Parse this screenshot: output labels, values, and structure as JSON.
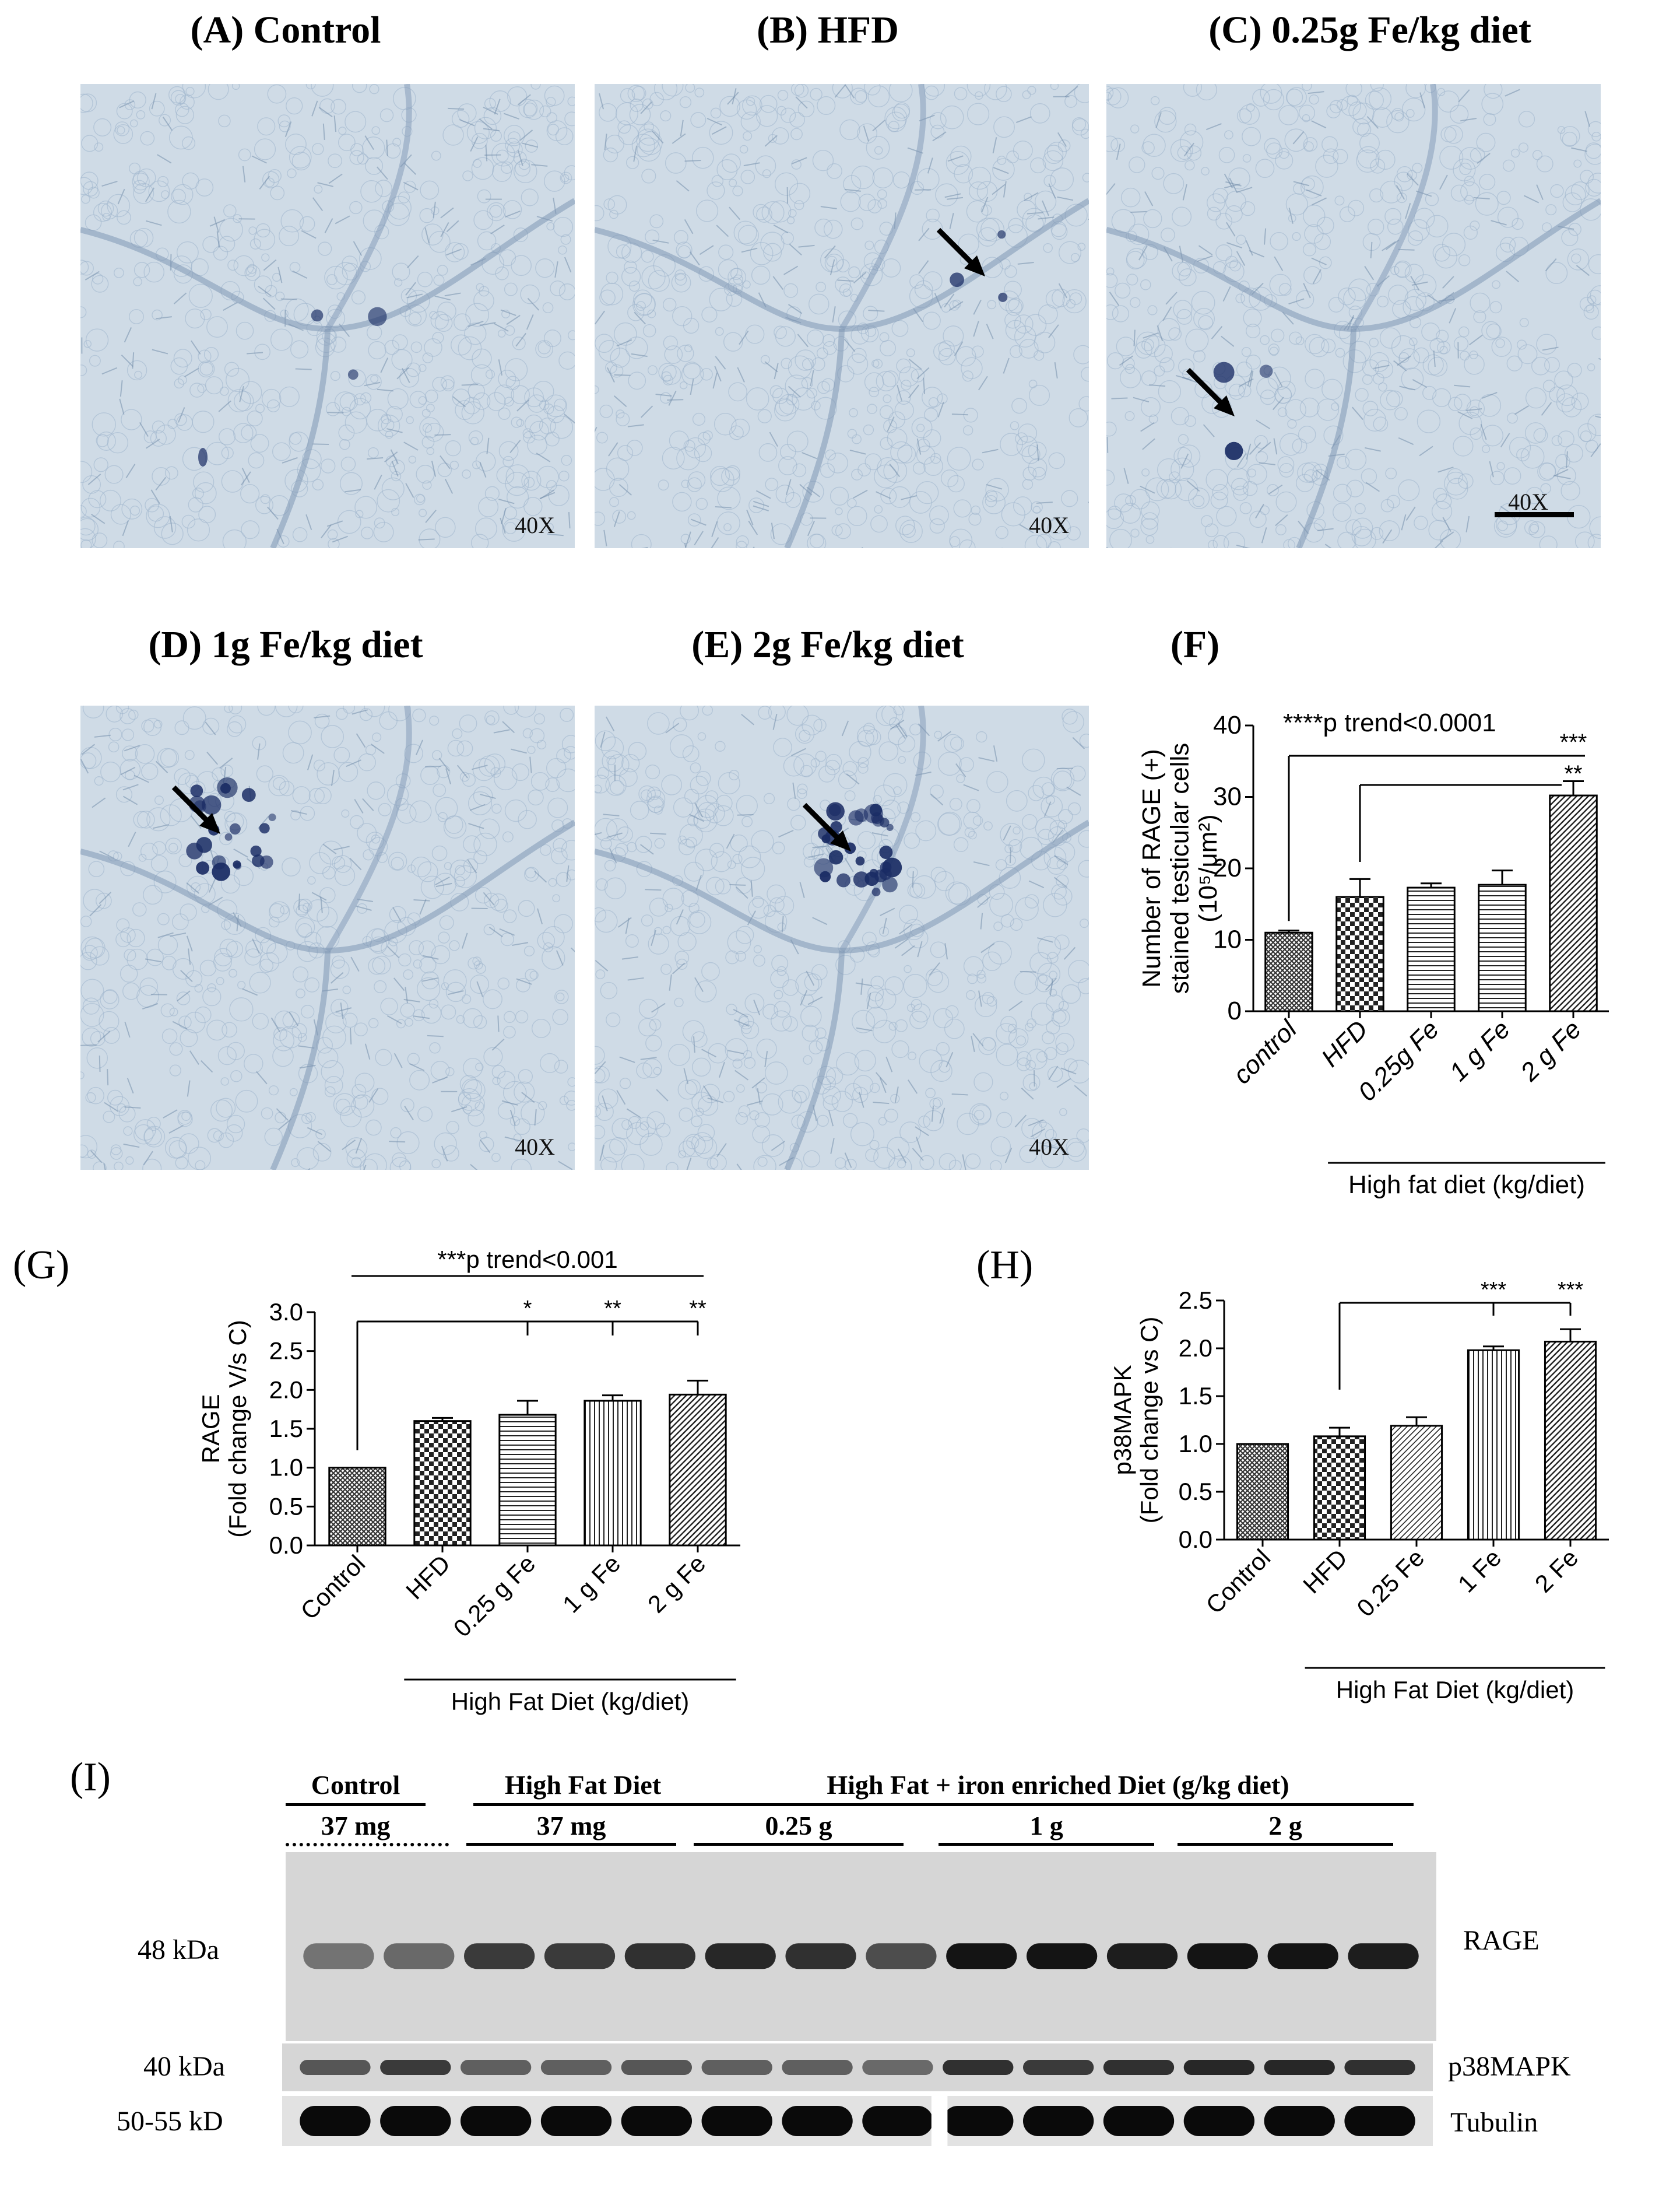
{
  "micrographs": [
    {
      "id": "A",
      "title": "(A) Control",
      "mag": "40X",
      "arrow": false,
      "stain": 1
    },
    {
      "id": "B",
      "title": "(B) HFD",
      "mag": "40X",
      "arrow": true,
      "stain": 2
    },
    {
      "id": "C",
      "title": "(C) 0.25g Fe/kg diet",
      "mag": "40X",
      "arrow": true,
      "stain": 2
    },
    {
      "id": "D",
      "title": "(D) 1g Fe/kg diet",
      "mag": "40X",
      "arrow": true,
      "stain": 3
    },
    {
      "id": "E",
      "title": "(E) 2g Fe/kg diet",
      "mag": "40X",
      "arrow": true,
      "stain": 4
    }
  ],
  "colors": {
    "tissue_bg": "#c9d6e2",
    "stain": "#1a2c64",
    "bar_fill": "#8a8a8a"
  },
  "chart_data": [
    {
      "panel": "(F)",
      "type": "bar",
      "categories": [
        "control",
        "HFD",
        "0.25g Fe",
        "1 g Fe",
        "2 g Fe"
      ],
      "values": [
        11,
        16,
        17.3,
        17.7,
        30.2
      ],
      "errors": [
        0.3,
        2.5,
        0.6,
        2.0,
        2.0
      ],
      "patterns": [
        "cross",
        "checker",
        "hlines",
        "hlines",
        "diag"
      ],
      "ylabel": "Number of RAGE (+) stained testicular cells (10⁵/μm²)",
      "ytick_labels": [
        "0",
        "10",
        "20",
        "30",
        "40"
      ],
      "ylim": [
        0,
        40
      ],
      "xgroup_label": "High fat diet (kg/diet)",
      "annotations": [
        {
          "text": "****p trend<0.0001",
          "from": 0,
          "to": 4,
          "level": 1
        },
        {
          "text": "***",
          "from": 0,
          "to": 4,
          "level": 1
        },
        {
          "text": "**",
          "from": 1,
          "to": 4,
          "level": 2
        }
      ]
    },
    {
      "panel": "(G)",
      "type": "bar",
      "categories": [
        "Control",
        "HFD",
        "0.25 g Fe",
        "1 g Fe",
        "2 g Fe"
      ],
      "values": [
        1.0,
        1.6,
        1.68,
        1.86,
        1.94
      ],
      "errors": [
        0.0,
        0.04,
        0.18,
        0.07,
        0.18
      ],
      "patterns": [
        "cross",
        "checker",
        "hlines",
        "vlines",
        "diag"
      ],
      "ylabel": "RAGE (Fold change V/s C)",
      "ytick_labels": [
        "0.0",
        "0.5",
        "1.0",
        "1.5",
        "2.0",
        "2.5",
        "3.0"
      ],
      "ylim": [
        0,
        3.0
      ],
      "xgroup_label": "High Fat Diet (kg/diet)",
      "annotations": [
        {
          "text": "***p trend<0.001",
          "from": 0,
          "to": 4,
          "level": 2
        },
        {
          "text": "*",
          "from": 0,
          "to": 2,
          "level": 1
        },
        {
          "text": "**",
          "from": 0,
          "to": 3,
          "level": 1
        },
        {
          "text": "**",
          "from": 0,
          "to": 4,
          "level": 1
        }
      ]
    },
    {
      "panel": "(H)",
      "type": "bar",
      "categories": [
        "Control",
        "HFD",
        "0.25 Fe",
        "1 Fe",
        "2 Fe"
      ],
      "values": [
        1.0,
        1.08,
        1.19,
        1.98,
        2.07
      ],
      "errors": [
        0.0,
        0.09,
        0.09,
        0.04,
        0.13
      ],
      "patterns": [
        "cross",
        "checker",
        "diag2",
        "vlines",
        "diag"
      ],
      "ylabel": "p38MAPK (Fold change vs C)",
      "ytick_labels": [
        "0.0",
        "0.5",
        "1.0",
        "1.5",
        "2.0",
        "2.5"
      ],
      "ylim": [
        0,
        2.5
      ],
      "xgroup_label": "High Fat Diet (kg/diet)",
      "annotations": [
        {
          "text": "***",
          "from": 1,
          "to": 3,
          "level": 1
        },
        {
          "text": "***",
          "from": 1,
          "to": 4,
          "level": 1
        }
      ]
    }
  ],
  "western": {
    "panel": "(I)",
    "groups": [
      {
        "label": "Control",
        "dose": "37 mg",
        "lanes": 2,
        "dotted": true
      },
      {
        "label": "High Fat Diet",
        "dose": "37 mg",
        "lanes": 3,
        "dotted": false
      },
      {
        "label": "",
        "dose": "0.25 g",
        "lanes": 3,
        "dotted": false
      },
      {
        "label": "",
        "dose": "1 g",
        "lanes": 3,
        "dotted": false
      },
      {
        "label": "",
        "dose": "2 g",
        "lanes": 3,
        "dotted": false
      }
    ],
    "span_label": "High Fat + iron enriched Diet (g/kg diet)",
    "blots": [
      {
        "kda": "48 kDa",
        "protein": "RAGE",
        "intensity": [
          0.45,
          0.5,
          0.75,
          0.75,
          0.8,
          0.85,
          0.8,
          0.65,
          0.95,
          0.95,
          0.9,
          0.95,
          0.95,
          0.9
        ]
      },
      {
        "kda": "40 kDa",
        "protein": "p38MAPK",
        "intensity": [
          0.6,
          0.75,
          0.55,
          0.55,
          0.6,
          0.55,
          0.55,
          0.5,
          0.8,
          0.75,
          0.8,
          0.85,
          0.85,
          0.8
        ]
      },
      {
        "kda": "50-55 kD",
        "protein": "Tubulin",
        "intensity": [
          1,
          1,
          1,
          1,
          1,
          1,
          1,
          1,
          1,
          1,
          1,
          1,
          1,
          1
        ]
      }
    ]
  }
}
